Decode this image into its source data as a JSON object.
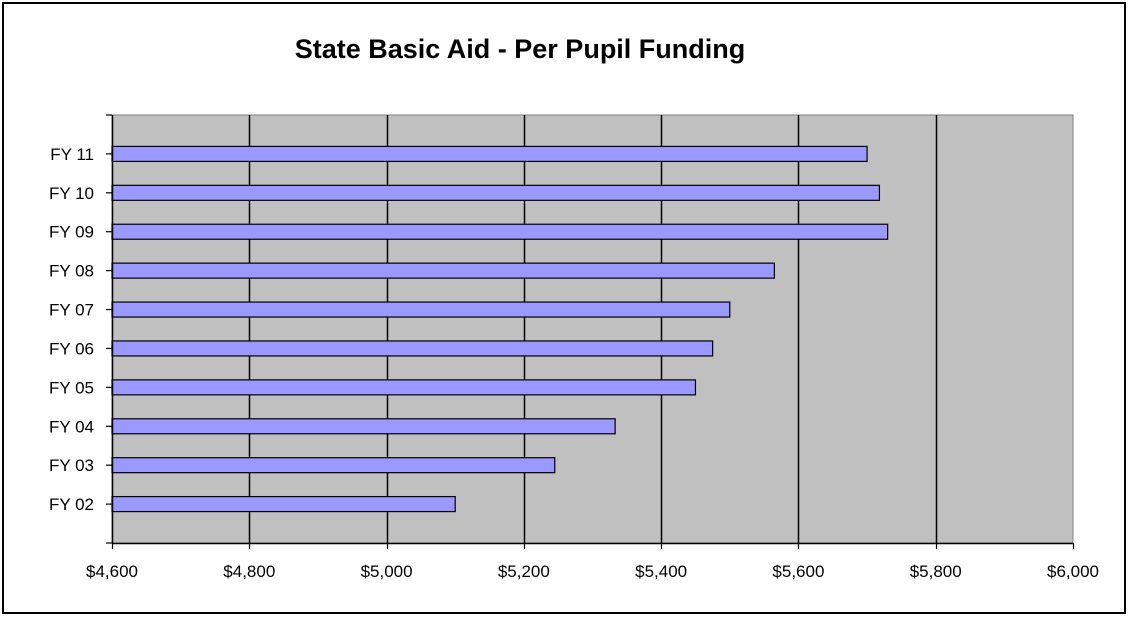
{
  "chart_data": {
    "type": "bar",
    "orientation": "horizontal",
    "title": "State Basic Aid - Per Pupil Funding",
    "xlabel": "",
    "ylabel": "",
    "categories": [
      "FY 02",
      "FY 03",
      "FY 04",
      "FY 05",
      "FY 06",
      "FY 07",
      "FY 08",
      "FY 09",
      "FY 10",
      "FY 11"
    ],
    "values": [
      5100,
      5245,
      5333,
      5450,
      5475,
      5500,
      5565,
      5730,
      5718,
      5700
    ],
    "xlim": [
      4600,
      6000
    ],
    "x_ticks": [
      4600,
      4800,
      5000,
      5200,
      5400,
      5600,
      5800,
      6000
    ],
    "x_tick_labels": [
      "$4,600",
      "$4,800",
      "$5,000",
      "$5,200",
      "$5,400",
      "$5,600",
      "$5,800",
      "$6,000"
    ],
    "grid": "vertical",
    "legend": "none",
    "colors": {
      "bar_fill": "#9999FF",
      "bar_stroke": "#000000",
      "plot_background": "#C0C0C0",
      "grid": "#000000"
    }
  }
}
